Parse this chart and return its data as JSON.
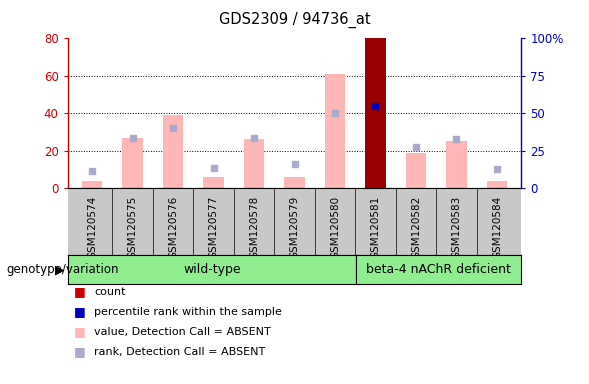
{
  "title": "GDS2309 / 94736_at",
  "samples": [
    "GSM120574",
    "GSM120575",
    "GSM120576",
    "GSM120577",
    "GSM120578",
    "GSM120579",
    "GSM120580",
    "GSM120581",
    "GSM120582",
    "GSM120583",
    "GSM120584"
  ],
  "pink_bar_heights": [
    4,
    27,
    39,
    6,
    26,
    6,
    61,
    80,
    19,
    25,
    4
  ],
  "blue_square_y": [
    9,
    27,
    32,
    11,
    27,
    13,
    40,
    44,
    22,
    26,
    10
  ],
  "dark_red_bar_index": 7,
  "dark_red_bar_height": 80,
  "wild_type_count": 7,
  "beta_count": 4,
  "wild_type_label": "wild-type",
  "beta_label": "beta-4 nAChR deficient",
  "genotype_label": "genotype/variation",
  "left_yticks": [
    0,
    20,
    40,
    60,
    80
  ],
  "right_ytick_labels": [
    "0",
    "25",
    "50",
    "75",
    "100%"
  ],
  "ylim_max": 80,
  "pink_color": "#FFB6B6",
  "blue_color": "#AAAACC",
  "dark_red_color": "#990000",
  "left_axis_color": "#CC0000",
  "right_axis_color": "#0000BB",
  "xtick_bg_color": "#C8C8C8",
  "green_box_color": "#90EE90",
  "bg_color": "#FFFFFF",
  "legend_items": [
    "count",
    "percentile rank within the sample",
    "value, Detection Call = ABSENT",
    "rank, Detection Call = ABSENT"
  ],
  "legend_colors": [
    "#CC0000",
    "#0000BB",
    "#FFB6B6",
    "#AAAACC"
  ]
}
